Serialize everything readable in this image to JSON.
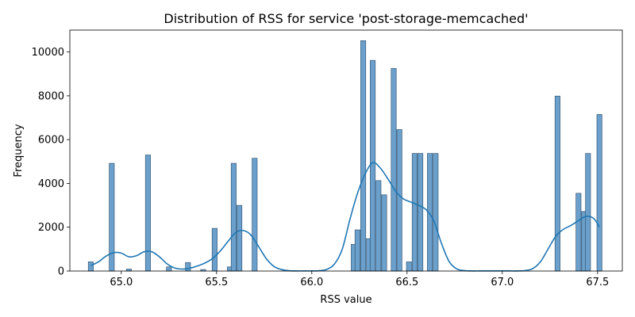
{
  "chart_data": {
    "type": "bar",
    "title": "Distribution of RSS for service 'post-storage-memcached'",
    "xlabel": "RSS value",
    "ylabel": "Frequency",
    "xlim": [
      64.73,
      67.63
    ],
    "ylim": [
      0,
      11000
    ],
    "xticks": [
      65.0,
      65.5,
      66.0,
      66.5,
      67.0,
      67.5
    ],
    "xtick_labels": [
      "65.0",
      "65.5",
      "66.0",
      "66.5",
      "67.0",
      "67.5"
    ],
    "yticks": [
      0,
      2000,
      4000,
      6000,
      8000,
      10000
    ],
    "ytick_labels": [
      "0",
      "2000",
      "4000",
      "6000",
      "8000",
      "10000"
    ],
    "bin_width": 0.0267,
    "bars": [
      {
        "x": 64.84,
        "value": 420
      },
      {
        "x": 64.95,
        "value": 4920
      },
      {
        "x": 65.04,
        "value": 90
      },
      {
        "x": 65.14,
        "value": 5300
      },
      {
        "x": 65.25,
        "value": 190
      },
      {
        "x": 65.35,
        "value": 390
      },
      {
        "x": 65.43,
        "value": 70
      },
      {
        "x": 65.49,
        "value": 1950
      },
      {
        "x": 65.57,
        "value": 190
      },
      {
        "x": 65.59,
        "value": 4920
      },
      {
        "x": 65.62,
        "value": 3000
      },
      {
        "x": 65.7,
        "value": 5150
      },
      {
        "x": 66.22,
        "value": 1220
      },
      {
        "x": 66.24,
        "value": 1880
      },
      {
        "x": 66.27,
        "value": 10520
      },
      {
        "x": 66.3,
        "value": 1480
      },
      {
        "x": 66.32,
        "value": 9620
      },
      {
        "x": 66.35,
        "value": 4130
      },
      {
        "x": 66.38,
        "value": 3480
      },
      {
        "x": 66.43,
        "value": 9250
      },
      {
        "x": 66.46,
        "value": 6460
      },
      {
        "x": 66.51,
        "value": 420
      },
      {
        "x": 66.54,
        "value": 5370
      },
      {
        "x": 66.57,
        "value": 5370
      },
      {
        "x": 66.62,
        "value": 5370
      },
      {
        "x": 66.65,
        "value": 5370
      },
      {
        "x": 67.29,
        "value": 7990
      },
      {
        "x": 67.4,
        "value": 3550
      },
      {
        "x": 67.43,
        "value": 2720
      },
      {
        "x": 67.45,
        "value": 5370
      },
      {
        "x": 67.51,
        "value": 7150
      }
    ],
    "kde": {
      "x": [
        64.84,
        64.88,
        64.92,
        64.96,
        65.0,
        65.04,
        65.08,
        65.12,
        65.16,
        65.2,
        65.24,
        65.28,
        65.32,
        65.36,
        65.4,
        65.44,
        65.48,
        65.52,
        65.56,
        65.6,
        65.64,
        65.68,
        65.72,
        65.76,
        65.8,
        65.84,
        65.88,
        65.92,
        65.96,
        66.0,
        66.04,
        66.08,
        66.12,
        66.16,
        66.2,
        66.24,
        66.28,
        66.32,
        66.36,
        66.4,
        66.44,
        66.48,
        66.52,
        66.56,
        66.6,
        66.64,
        66.68,
        66.72,
        66.76,
        66.8,
        66.84,
        66.88,
        66.92,
        66.96,
        67.0,
        67.04,
        67.08,
        67.12,
        67.16,
        67.2,
        67.24,
        67.28,
        67.32,
        67.36,
        67.4,
        67.44,
        67.48,
        67.51
      ],
      "y": [
        250,
        420,
        680,
        840,
        820,
        650,
        700,
        880,
        880,
        650,
        330,
        140,
        90,
        130,
        230,
        370,
        580,
        920,
        1350,
        1750,
        1850,
        1650,
        1130,
        580,
        220,
        70,
        15,
        5,
        5,
        5,
        15,
        80,
        330,
        1000,
        2350,
        3550,
        4430,
        4950,
        4700,
        4200,
        3650,
        3300,
        3150,
        3000,
        2800,
        2300,
        1280,
        450,
        100,
        20,
        5,
        5,
        5,
        5,
        5,
        5,
        5,
        20,
        110,
        420,
        1000,
        1580,
        1900,
        2080,
        2300,
        2500,
        2400,
        2000
      ]
    },
    "colors": {
      "bar_fill": "#6aa0cb",
      "bar_edge": "#2d4a66",
      "kde_line": "#1f77b4",
      "axis": "#000000"
    },
    "grid": false,
    "legend": "none"
  }
}
